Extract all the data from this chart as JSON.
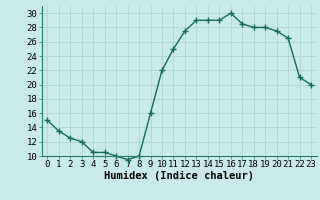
{
  "x": [
    0,
    1,
    2,
    3,
    4,
    5,
    6,
    7,
    8,
    9,
    10,
    11,
    12,
    13,
    14,
    15,
    16,
    17,
    18,
    19,
    20,
    21,
    22,
    23
  ],
  "y": [
    15,
    13.5,
    12.5,
    12,
    10.5,
    10.5,
    10,
    9.5,
    10,
    16,
    22,
    25,
    27.5,
    29,
    29,
    29,
    30,
    28.5,
    28,
    28,
    27.5,
    26.5,
    21,
    20
  ],
  "line_color": "#1a6b5a",
  "marker": "+",
  "marker_size": 4,
  "bg_color": "#c8eaea",
  "grid_color": "#afd0d0",
  "xlabel": "Humidex (Indice chaleur)",
  "ylim": [
    10,
    31
  ],
  "yticks": [
    10,
    12,
    14,
    16,
    18,
    20,
    22,
    24,
    26,
    28,
    30
  ],
  "xticks": [
    0,
    1,
    2,
    3,
    4,
    5,
    6,
    7,
    8,
    9,
    10,
    11,
    12,
    13,
    14,
    15,
    16,
    17,
    18,
    19,
    20,
    21,
    22,
    23
  ],
  "xlabel_fontsize": 7.5,
  "tick_fontsize": 6.5,
  "line_width": 1.0,
  "marker_edge_width": 1.0
}
